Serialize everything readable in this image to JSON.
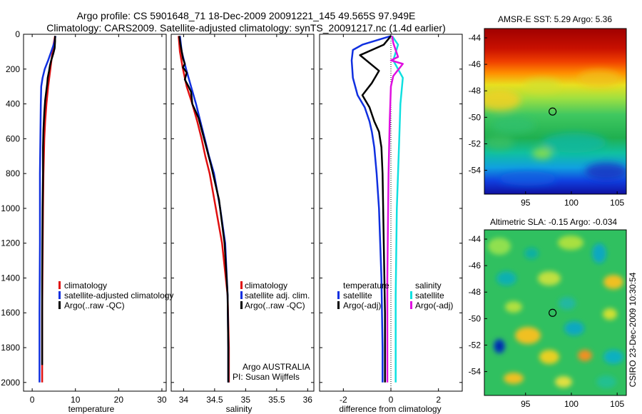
{
  "header": {
    "line1": "Argo profile: CS 5901648_71 18-Dec-2009 20091221_145 49.565S 97.949E",
    "line2": "Climatology: CARS2009. Satellite-adjusted climatology: synTS_20091217.nc (1.4d earlier)"
  },
  "colors": {
    "climatology": "#e01010",
    "satellite": "#1030e0",
    "argo": "#000000",
    "sat_salinity": "#10e0e0",
    "argo_salinity": "#e010e0"
  },
  "chart_data": [
    {
      "type": "line",
      "title": "",
      "xlabel": "temperature",
      "ylabel": "",
      "xlim": [
        -2,
        31
      ],
      "ylim": [
        2050,
        0
      ],
      "xticks": [
        "0",
        "10",
        "20",
        "30"
      ],
      "xtick_values": [
        0,
        10,
        20,
        30
      ],
      "yticks": [
        "0",
        "200",
        "400",
        "600",
        "800",
        "1000",
        "1200",
        "1400",
        "1600",
        "1800",
        "2000"
      ],
      "ytick_values": [
        0,
        200,
        400,
        600,
        800,
        1000,
        1200,
        1400,
        1600,
        1800,
        2000
      ],
      "legend": [
        "climatology",
        "satellite-adjusted climatology",
        "Argo(..raw -QC)"
      ],
      "legend_position": "lower-right",
      "series": [
        {
          "name": "climatology",
          "color": "climatology",
          "x": [
            5.3,
            5.0,
            4.7,
            4.2,
            3.7,
            3.3,
            3.0,
            2.8,
            2.6,
            2.5,
            2.4,
            2.3,
            2.3
          ],
          "y": [
            10,
            50,
            100,
            200,
            300,
            400,
            500,
            600,
            800,
            1000,
            1300,
            1600,
            2000
          ]
        },
        {
          "name": "satellite-adjusted climatology",
          "color": "satellite",
          "x": [
            5.4,
            5.1,
            4.4,
            3.7,
            2.9,
            2.4,
            2.1,
            2.0,
            1.9,
            1.8,
            1.8,
            1.7,
            1.7
          ],
          "y": [
            10,
            50,
            100,
            150,
            200,
            250,
            300,
            400,
            600,
            800,
            1200,
            1600,
            2000
          ]
        },
        {
          "name": "Argo(..raw -QC)",
          "color": "argo",
          "x": [
            5.3,
            5.3,
            5.2,
            4.9,
            4.4,
            4.1,
            3.9,
            3.6,
            3.5,
            3.3,
            3.0,
            2.8,
            2.6,
            2.5,
            2.5,
            2.4,
            2.3,
            2.3
          ],
          "y": [
            10,
            40,
            80,
            110,
            150,
            180,
            210,
            250,
            280,
            320,
            380,
            450,
            550,
            650,
            800,
            1000,
            1400,
            1900
          ]
        }
      ]
    },
    {
      "type": "line",
      "title": "",
      "xlabel": "salinity",
      "xlim": [
        33.8,
        36.1
      ],
      "ylim": [
        2050,
        0
      ],
      "xticks": [
        "34",
        "34.5",
        "35",
        "35.5",
        "36"
      ],
      "xtick_values": [
        34,
        34.5,
        35,
        35.5,
        36
      ],
      "legend": [
        "climatology",
        "satellite adj. clim.",
        "Argo(..raw -QC)"
      ],
      "legend_position": "lower-right",
      "annotation": [
        "Argo AUSTRALIA",
        "PI: Susan Wijffels"
      ],
      "series": [
        {
          "name": "climatology",
          "color": "climatology",
          "x": [
            33.92,
            33.94,
            33.99,
            34.05,
            34.14,
            34.22,
            34.29,
            34.35,
            34.42,
            34.52,
            34.62,
            34.71,
            34.73,
            34.73
          ],
          "y": [
            10,
            100,
            200,
            300,
            400,
            500,
            600,
            700,
            800,
            1000,
            1200,
            1500,
            1800,
            2000
          ]
        },
        {
          "name": "satellite adj. clim.",
          "color": "satellite",
          "x": [
            33.94,
            33.97,
            34.04,
            34.12,
            34.2,
            34.27,
            34.34,
            34.41,
            34.49,
            34.59,
            34.67,
            34.71,
            34.72,
            34.72
          ],
          "y": [
            10,
            100,
            200,
            300,
            400,
            500,
            600,
            700,
            800,
            1000,
            1200,
            1500,
            1800,
            2000
          ]
        },
        {
          "name": "Argo(..raw -QC)",
          "color": "argo",
          "x": [
            33.93,
            33.95,
            33.97,
            33.99,
            34.02,
            33.99,
            34.05,
            34.02,
            34.08,
            34.12,
            34.14,
            34.24,
            34.33,
            34.44,
            34.57,
            34.66,
            34.71,
            34.72,
            34.72
          ],
          "y": [
            10,
            60,
            100,
            140,
            170,
            190,
            220,
            260,
            300,
            330,
            400,
            480,
            600,
            750,
            950,
            1200,
            1500,
            1800,
            2000
          ]
        }
      ]
    },
    {
      "type": "line",
      "title": "",
      "xlabel": "difference from climatology",
      "xlim": [
        -3,
        3
      ],
      "ylim": [
        2050,
        0
      ],
      "xticks": [
        "-2",
        "0",
        "2"
      ],
      "xtick_values": [
        -2,
        0,
        2
      ],
      "legend": [
        "temperature",
        "satellite",
        "Argo(-adj)",
        "salinity",
        "satellite",
        "Argo(-adj)"
      ],
      "legend_position": "lower",
      "series": [
        {
          "name": "temperature satellite",
          "color": "satellite",
          "x": [
            0.0,
            -1.2,
            -1.6,
            -1.65,
            -1.6,
            -1.4,
            -1.1,
            -0.9,
            -0.8,
            -0.7,
            -0.6,
            -0.5,
            -0.4,
            -0.35,
            -0.35
          ],
          "y": [
            10,
            60,
            90,
            150,
            250,
            350,
            420,
            500,
            560,
            650,
            800,
            1000,
            1400,
            1800,
            2000
          ]
        },
        {
          "name": "temperature Argo(-adj)",
          "color": "argo",
          "x": [
            0.0,
            -0.3,
            -1.3,
            -0.5,
            -0.8,
            -1.2,
            -0.9,
            -0.7,
            -0.5,
            -0.4,
            -0.35,
            -0.3,
            -0.25,
            -0.25
          ],
          "y": [
            10,
            60,
            120,
            210,
            280,
            350,
            420,
            500,
            560,
            650,
            800,
            1200,
            1600,
            2000
          ]
        },
        {
          "name": "salinity satellite",
          "color": "sat_salinity",
          "x": [
            0.05,
            0.3,
            0.1,
            0.3,
            0.5,
            0.4,
            0.35,
            0.3,
            0.25,
            0.2,
            0.2
          ],
          "y": [
            10,
            60,
            150,
            200,
            250,
            400,
            600,
            800,
            1000,
            1500,
            2000
          ]
        },
        {
          "name": "salinity Argo(-adj)",
          "color": "argo_salinity",
          "x": [
            0.05,
            0.1,
            0.3,
            0.0,
            0.5,
            0.1,
            0.0,
            -0.05,
            -0.1,
            -0.15,
            -0.15
          ],
          "y": [
            10,
            50,
            130,
            150,
            170,
            240,
            300,
            500,
            800,
            1400,
            2000
          ]
        }
      ]
    },
    {
      "type": "heatmap",
      "title": "AMSR-E SST: 5.29  Argo: 5.36",
      "xticks": [
        "95",
        "100",
        "105"
      ],
      "xtick_values": [
        95,
        100,
        105
      ],
      "yticks": [
        "-44",
        "-46",
        "-48",
        "-50",
        "-52",
        "-54"
      ],
      "ytick_values": [
        -44,
        -46,
        -48,
        -50,
        -52,
        -54
      ],
      "xlim": [
        90.5,
        106
      ],
      "ylim": [
        -55.8,
        -43.3
      ],
      "marker": {
        "lon": 97.95,
        "lat": -49.565
      }
    },
    {
      "type": "heatmap",
      "title": "Altimetric SLA: -0.15  Argo: -0.034",
      "xticks": [
        "95",
        "100",
        "105"
      ],
      "xtick_values": [
        95,
        100,
        105
      ],
      "yticks": [
        "-44",
        "-46",
        "-48",
        "-50",
        "-52",
        "-54"
      ],
      "ytick_values": [
        -44,
        -46,
        -48,
        -50,
        -52,
        -54
      ],
      "xlim": [
        90.5,
        106
      ],
      "ylim": [
        -55.8,
        -43.3
      ],
      "marker": {
        "lon": 97.95,
        "lat": -49.565
      }
    }
  ],
  "legend3": {
    "temperature": "temperature",
    "salinity": "salinity",
    "satellite": "satellite",
    "argo": "Argo(-adj)"
  },
  "credit": "CSIRO 23-Dec-2009 10:30:54"
}
